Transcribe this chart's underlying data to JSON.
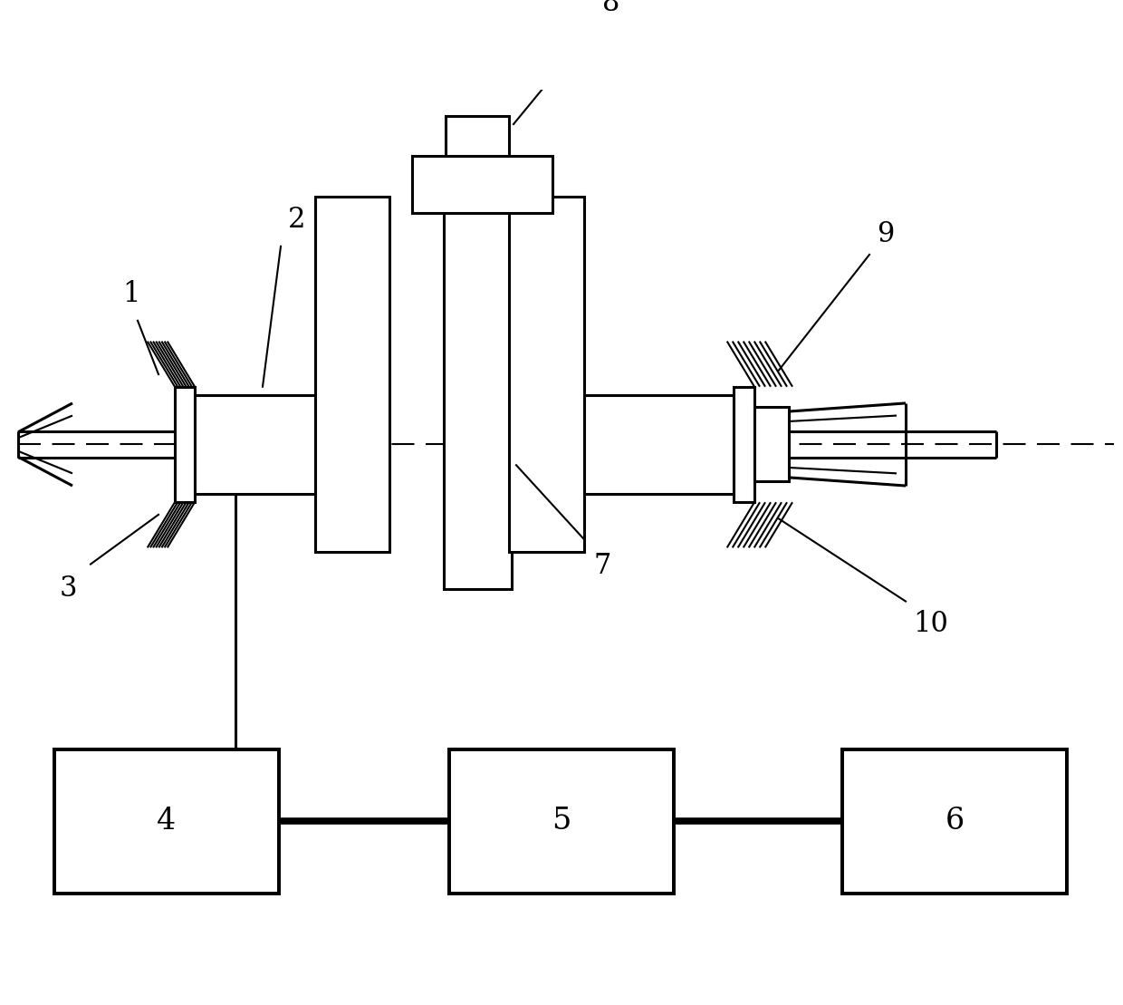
{
  "bg": "#ffffff",
  "lc": "#000000",
  "lw": 2.2,
  "fig_w": 12.4,
  "fig_h": 11.09,
  "label_fs": 22,
  "num_fs": 24
}
